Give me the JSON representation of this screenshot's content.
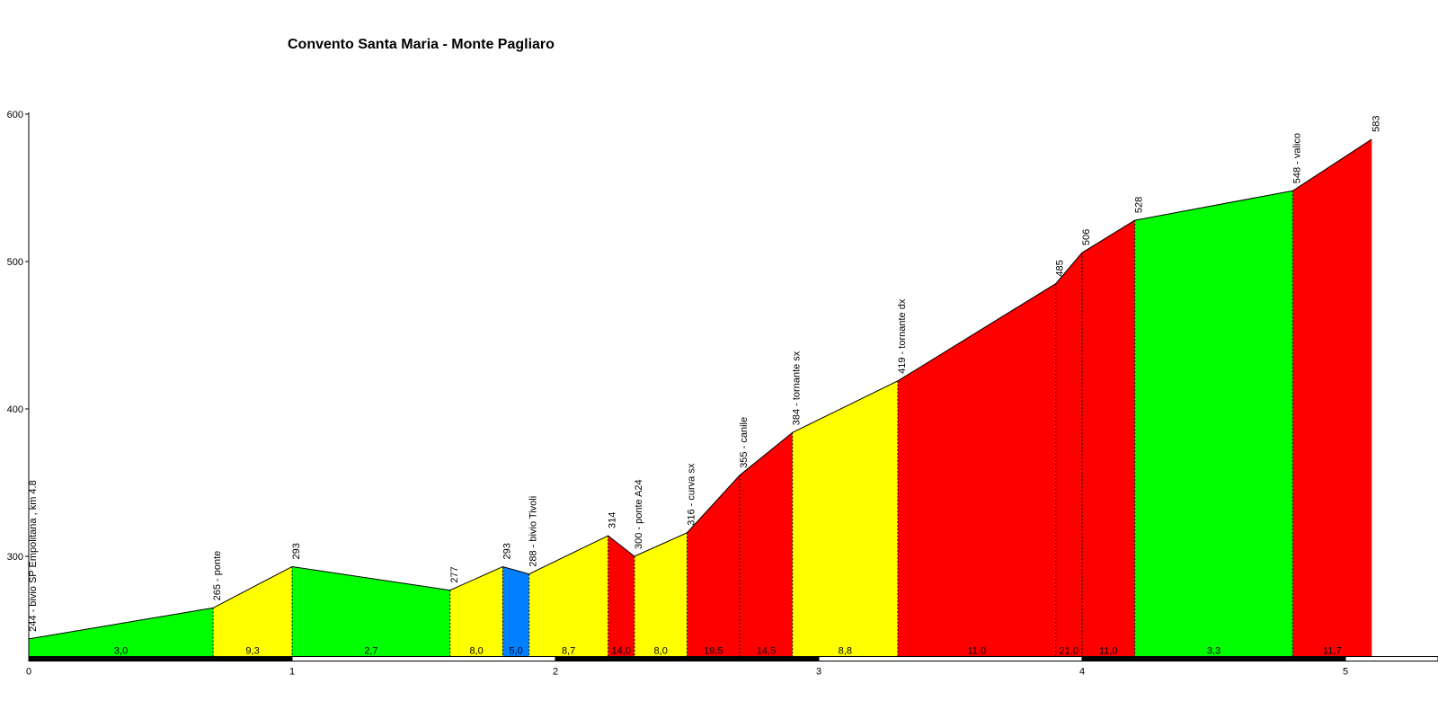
{
  "chart_data": {
    "type": "area",
    "title": "Convento Santa Maria - Monte Pagliaro",
    "xlim": [
      0,
      5.3
    ],
    "ylim": [
      232,
      600
    ],
    "yticks": [
      300,
      400,
      500,
      600
    ],
    "xticks": [
      0,
      1,
      2,
      3,
      4,
      5
    ],
    "grid": false,
    "colors": {
      "green": "#00ff00",
      "yellow": "#ffff00",
      "red": "#ff0000",
      "blue": "#0080ff"
    },
    "points": [
      {
        "x": 0.0,
        "y": 244,
        "label": "244 - bivio SP Empolitana , km 4.8"
      },
      {
        "x": 0.7,
        "y": 265,
        "label": "265 - ponte"
      },
      {
        "x": 1.0,
        "y": 293,
        "label": "293"
      },
      {
        "x": 1.6,
        "y": 277,
        "label": "277"
      },
      {
        "x": 1.8,
        "y": 293,
        "label": "293"
      },
      {
        "x": 1.9,
        "y": 288,
        "label": "288 - bivio Tivoli"
      },
      {
        "x": 2.2,
        "y": 314,
        "label": "314"
      },
      {
        "x": 2.3,
        "y": 300,
        "label": "300 - ponte  A24"
      },
      {
        "x": 2.5,
        "y": 316,
        "label": "316 - curva sx"
      },
      {
        "x": 2.7,
        "y": 355,
        "label": "355 - canile"
      },
      {
        "x": 2.9,
        "y": 384,
        "label": "384 - tornante sx"
      },
      {
        "x": 3.3,
        "y": 419,
        "label": "419 - tornante dx"
      },
      {
        "x": 3.9,
        "y": 485,
        "label": "485"
      },
      {
        "x": 4.0,
        "y": 506,
        "label": "506"
      },
      {
        "x": 4.2,
        "y": 528,
        "label": "528"
      },
      {
        "x": 4.8,
        "y": 548,
        "label": "548 - valico"
      },
      {
        "x": 5.1,
        "y": 583,
        "label": "583"
      }
    ],
    "segments": [
      {
        "grade": "3,0",
        "color": "green"
      },
      {
        "grade": "9,3",
        "color": "yellow"
      },
      {
        "grade": "2,7",
        "color": "green"
      },
      {
        "grade": "8,0",
        "color": "yellow"
      },
      {
        "grade": "5,0",
        "color": "blue"
      },
      {
        "grade": "8,7",
        "color": "yellow"
      },
      {
        "grade": "14,0",
        "color": "red"
      },
      {
        "grade": "8,0",
        "color": "yellow"
      },
      {
        "grade": "19,5",
        "color": "red"
      },
      {
        "grade": "14,5",
        "color": "red"
      },
      {
        "grade": "8,8",
        "color": "yellow"
      },
      {
        "grade": "11,0",
        "color": "red"
      },
      {
        "grade": "21,0",
        "color": "red"
      },
      {
        "grade": "11,0",
        "color": "red"
      },
      {
        "grade": "3,3",
        "color": "green"
      },
      {
        "grade": "11,7",
        "color": "red"
      }
    ]
  }
}
